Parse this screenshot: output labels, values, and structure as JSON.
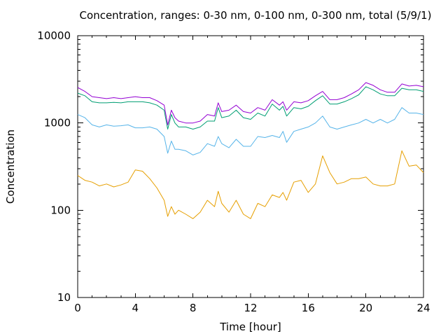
{
  "chart_data": {
    "type": "line",
    "title": "Concentration, ranges: 0-30 nm, 0-100 nm, 0-300 nm, total (5/9/1)",
    "xlabel": "Time [hour]",
    "ylabel": "Concentration",
    "xlim": [
      0,
      24
    ],
    "ylim": [
      10,
      10000
    ],
    "yscale": "log",
    "grid": false,
    "legend": "none",
    "xticks": [
      0,
      4,
      8,
      12,
      16,
      20,
      24
    ],
    "xtick_labels": [
      "0",
      "4",
      "8",
      "12",
      "16",
      "20",
      "24"
    ],
    "yticks": [
      10,
      100,
      1000,
      10000
    ],
    "ytick_labels": [
      "10",
      "100",
      "1000",
      "10000"
    ],
    "x": [
      0,
      0.5,
      1,
      1.5,
      2,
      2.5,
      3,
      3.5,
      4,
      4.5,
      5,
      5.5,
      6,
      6.25,
      6.5,
      6.75,
      7,
      7.5,
      8,
      8.5,
      9,
      9.5,
      9.75,
      10,
      10.5,
      11,
      11.5,
      12,
      12.5,
      13,
      13.5,
      14,
      14.25,
      14.5,
      15,
      15.5,
      16,
      16.5,
      17,
      17.5,
      18,
      18.5,
      19,
      19.5,
      20,
      20.5,
      21,
      21.5,
      22,
      22.5,
      23,
      23.5,
      24
    ],
    "series": [
      {
        "color": "#e69f00",
        "values": [
          250,
          220,
          210,
          190,
          200,
          185,
          195,
          210,
          290,
          280,
          230,
          180,
          130,
          85,
          110,
          90,
          100,
          90,
          80,
          95,
          130,
          110,
          165,
          120,
          95,
          130,
          90,
          80,
          120,
          110,
          150,
          140,
          160,
          130,
          210,
          220,
          160,
          200,
          420,
          270,
          200,
          210,
          230,
          230,
          240,
          200,
          190,
          190,
          200,
          480,
          320,
          330,
          270
        ]
      },
      {
        "color": "#56b4e9",
        "values": [
          1250,
          1150,
          950,
          900,
          950,
          920,
          930,
          950,
          880,
          880,
          900,
          850,
          700,
          450,
          620,
          500,
          500,
          480,
          430,
          460,
          580,
          540,
          700,
          580,
          520,
          650,
          540,
          540,
          700,
          680,
          720,
          680,
          800,
          600,
          800,
          850,
          900,
          1000,
          1200,
          900,
          850,
          900,
          950,
          1000,
          1100,
          1000,
          1100,
          1000,
          1100,
          1500,
          1300,
          1300,
          1250
        ]
      },
      {
        "color": "#009e73",
        "values": [
          2200,
          2050,
          1750,
          1700,
          1700,
          1720,
          1700,
          1750,
          1750,
          1750,
          1700,
          1600,
          1400,
          850,
          1250,
          1000,
          900,
          900,
          850,
          900,
          1050,
          1050,
          1500,
          1150,
          1200,
          1400,
          1150,
          1100,
          1300,
          1200,
          1650,
          1400,
          1550,
          1200,
          1500,
          1450,
          1550,
          1800,
          2050,
          1650,
          1650,
          1750,
          1900,
          2100,
          2600,
          2400,
          2150,
          2050,
          2050,
          2500,
          2400,
          2400,
          2300
        ]
      },
      {
        "color": "#9400d3",
        "values": [
          2550,
          2300,
          2000,
          1950,
          1900,
          1950,
          1900,
          1950,
          2000,
          1950,
          1950,
          1800,
          1600,
          950,
          1400,
          1150,
          1050,
          1000,
          1000,
          1050,
          1250,
          1200,
          1700,
          1350,
          1400,
          1600,
          1350,
          1300,
          1500,
          1400,
          1850,
          1600,
          1750,
          1400,
          1750,
          1700,
          1800,
          2050,
          2300,
          1850,
          1850,
          1950,
          2150,
          2400,
          2900,
          2700,
          2400,
          2250,
          2250,
          2800,
          2650,
          2700,
          2600
        ]
      }
    ]
  }
}
